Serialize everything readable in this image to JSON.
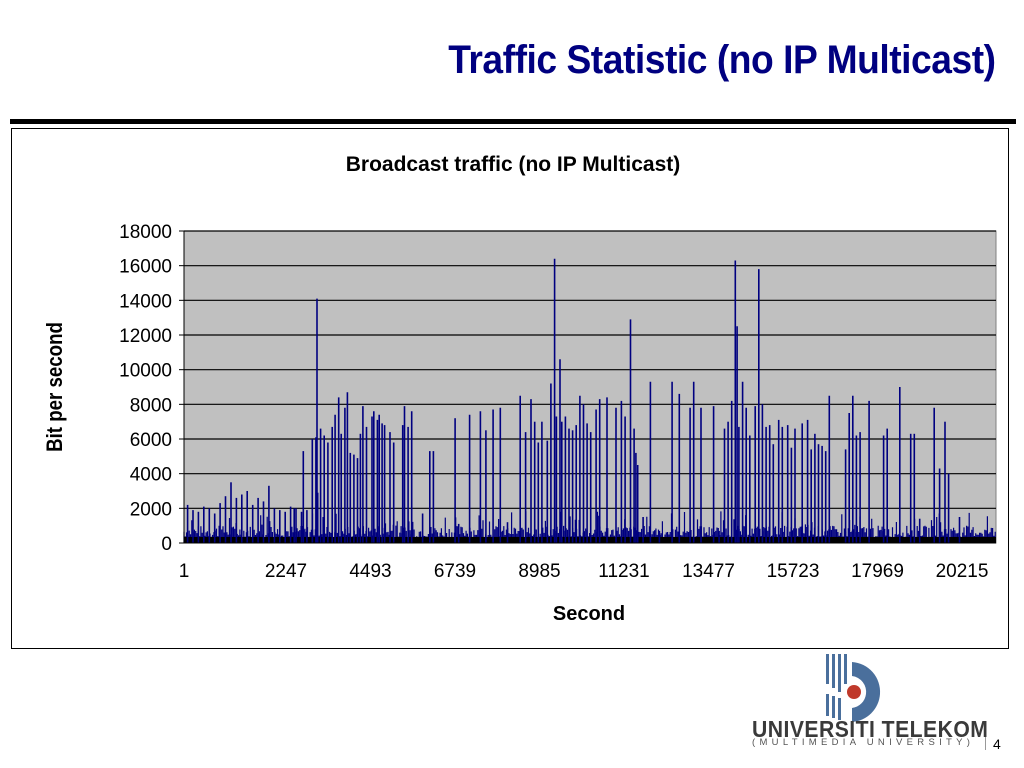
{
  "slide": {
    "title": "Traffic Statistic (no IP Multicast)",
    "page_number": "4",
    "logo_name": "UNIVERSITI TELEKOM",
    "logo_subtitle": "(MULTIMEDIA UNIVERSITY)"
  },
  "colors": {
    "title": "#000080",
    "series": "#000080",
    "plot_background": "#c0c0c0",
    "logo_blue": "#4a6f9c",
    "logo_red": "#c0392b"
  },
  "chart_data": {
    "type": "line",
    "title": "Broadcast traffic (no IP Multicast)",
    "xlabel": "Second",
    "ylabel": "Bit per second",
    "xlim": [
      1,
      22460
    ],
    "ylim": [
      0,
      18000
    ],
    "y_ticks": [
      0,
      2000,
      4000,
      6000,
      8000,
      10000,
      12000,
      14000,
      16000,
      18000
    ],
    "x_tick_labels": [
      "1",
      "2247",
      "4493",
      "6739",
      "8985",
      "11231",
      "13477",
      "15723",
      "17969",
      "20215"
    ],
    "grid": true,
    "legend": "none",
    "baseline_range": [
      300,
      1000
    ],
    "series": [
      {
        "values_kind": "spikes",
        "spikes": [
          [
            100,
            2200
          ],
          [
            250,
            1900
          ],
          [
            400,
            1800
          ],
          [
            550,
            2100
          ],
          [
            700,
            2000
          ],
          [
            850,
            1700
          ],
          [
            1000,
            2300
          ],
          [
            1150,
            2700
          ],
          [
            1300,
            3500
          ],
          [
            1450,
            2600
          ],
          [
            1600,
            2800
          ],
          [
            1750,
            3000
          ],
          [
            1900,
            2200
          ],
          [
            2050,
            2600
          ],
          [
            2200,
            2400
          ],
          [
            2350,
            3300
          ],
          [
            2500,
            2000
          ],
          [
            2650,
            1900
          ],
          [
            2800,
            1800
          ],
          [
            2950,
            2100
          ],
          [
            3100,
            2000
          ],
          [
            3250,
            1800
          ],
          [
            3400,
            1900
          ],
          [
            3550,
            1700
          ],
          [
            3700,
            2900
          ],
          [
            3850,
            1500
          ],
          [
            3050,
            2000
          ],
          [
            3300,
            5300
          ],
          [
            3550,
            6000
          ],
          [
            3650,
            6100
          ],
          [
            3780,
            6600
          ],
          [
            3880,
            6200
          ],
          [
            3680,
            14100
          ],
          [
            3980,
            5800
          ],
          [
            4100,
            6700
          ],
          [
            4180,
            7400
          ],
          [
            4280,
            8400
          ],
          [
            4350,
            6300
          ],
          [
            4450,
            7800
          ],
          [
            4520,
            8700
          ],
          [
            4600,
            5200
          ],
          [
            4700,
            5100
          ],
          [
            4800,
            4900
          ],
          [
            4880,
            6300
          ],
          [
            4950,
            7900
          ],
          [
            5050,
            6700
          ],
          [
            5200,
            7300
          ],
          [
            5250,
            7600
          ],
          [
            5350,
            7100
          ],
          [
            5400,
            7400
          ],
          [
            5480,
            6900
          ],
          [
            5550,
            6800
          ],
          [
            5700,
            6400
          ],
          [
            5800,
            5800
          ],
          [
            6050,
            6800
          ],
          [
            6100,
            7900
          ],
          [
            6200,
            6700
          ],
          [
            6300,
            7600
          ],
          [
            6600,
            1700
          ],
          [
            6800,
            5300
          ],
          [
            6900,
            5300
          ],
          [
            7500,
            7200
          ],
          [
            7600,
            1100
          ],
          [
            7900,
            7400
          ],
          [
            8200,
            7600
          ],
          [
            8350,
            6500
          ],
          [
            8550,
            7700
          ],
          [
            8750,
            7800
          ],
          [
            8950,
            1200
          ],
          [
            9300,
            8500
          ],
          [
            9450,
            6400
          ],
          [
            9600,
            8300
          ],
          [
            9700,
            7000
          ],
          [
            9800,
            5800
          ],
          [
            9900,
            7000
          ],
          [
            10050,
            5900
          ],
          [
            10150,
            9200
          ],
          [
            10250,
            16400
          ],
          [
            10300,
            7300
          ],
          [
            10400,
            10600
          ],
          [
            10450,
            7000
          ],
          [
            10550,
            7300
          ],
          [
            10650,
            6600
          ],
          [
            10750,
            6500
          ],
          [
            10850,
            6800
          ],
          [
            10950,
            8500
          ],
          [
            11050,
            8000
          ],
          [
            11150,
            6900
          ],
          [
            11250,
            6400
          ],
          [
            11400,
            7700
          ],
          [
            11500,
            8300
          ],
          [
            11700,
            8400
          ],
          [
            11950,
            7800
          ],
          [
            12100,
            8200
          ],
          [
            12200,
            7300
          ],
          [
            12350,
            12900
          ],
          [
            12450,
            6600
          ],
          [
            12500,
            5200
          ],
          [
            12550,
            4500
          ],
          [
            12700,
            1500
          ],
          [
            12900,
            9300
          ],
          [
            13150,
            700
          ],
          [
            13500,
            9300
          ],
          [
            13700,
            8600
          ],
          [
            14000,
            7800
          ],
          [
            14100,
            9300
          ],
          [
            14300,
            7800
          ],
          [
            14650,
            7900
          ],
          [
            14800,
            700
          ],
          [
            14950,
            6600
          ],
          [
            15050,
            7000
          ],
          [
            15150,
            8200
          ],
          [
            15250,
            16300
          ],
          [
            15300,
            12500
          ],
          [
            15350,
            6700
          ],
          [
            15450,
            9300
          ],
          [
            15550,
            7800
          ],
          [
            15650,
            6200
          ],
          [
            15800,
            7900
          ],
          [
            15900,
            15800
          ],
          [
            16000,
            8000
          ],
          [
            16100,
            6700
          ],
          [
            16200,
            6800
          ],
          [
            16300,
            5700
          ],
          [
            16450,
            7100
          ],
          [
            16550,
            6700
          ],
          [
            16700,
            6800
          ],
          [
            16800,
            5500
          ],
          [
            16900,
            6600
          ],
          [
            17100,
            6900
          ],
          [
            17250,
            7100
          ],
          [
            17350,
            5400
          ],
          [
            17450,
            6300
          ],
          [
            17550,
            5700
          ],
          [
            17650,
            5600
          ],
          [
            17750,
            5300
          ],
          [
            17850,
            8500
          ],
          [
            18300,
            5400
          ],
          [
            18400,
            7500
          ],
          [
            18500,
            8500
          ],
          [
            18600,
            6200
          ],
          [
            18700,
            6400
          ],
          [
            18950,
            8200
          ],
          [
            19350,
            6200
          ],
          [
            19450,
            6600
          ],
          [
            19800,
            9000
          ],
          [
            20100,
            6300
          ],
          [
            20200,
            6300
          ],
          [
            20350,
            1400
          ],
          [
            20750,
            7800
          ],
          [
            20900,
            4300
          ],
          [
            21050,
            7000
          ],
          [
            21150,
            4000
          ],
          [
            21450,
            1500
          ]
        ]
      }
    ]
  }
}
